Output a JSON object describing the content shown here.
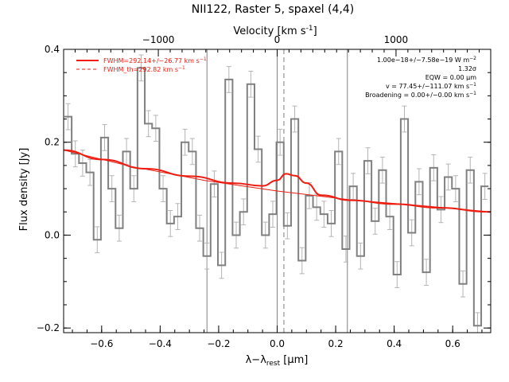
{
  "chart_data": {
    "type": "line",
    "title": "NII122, Raster 5, spaxel (4,4)",
    "xlabel": "λ−λ",
    "xlabel_sub": "rest",
    "xlabel_unit": " [μm]",
    "ylabel": "Flux density [Jy]",
    "top_axis_label": "Velocity [km s",
    "top_axis_label_sup": "-1",
    "top_axis_label_end": "]",
    "xlim": [
      -0.73,
      0.73
    ],
    "ylim": [
      -0.21,
      0.4
    ],
    "x_ticks": [
      -0.6,
      -0.4,
      -0.2,
      0.0,
      0.2,
      0.4,
      0.6
    ],
    "x_tick_labels": [
      "−0.6",
      "−0.4",
      "−0.2",
      "0.0",
      "0.2",
      "0.4",
      "0.6"
    ],
    "y_ticks": [
      -0.2,
      0.0,
      0.2,
      0.4
    ],
    "y_tick_labels": [
      "−0.2",
      "0.0",
      "0.2",
      "0.4"
    ],
    "top_ticks_kms": [
      -1000,
      0,
      1000
    ],
    "top_tick_labels": [
      "−1000",
      "0",
      "1000"
    ],
    "vertical_lines_x": [
      -0.24,
      0.0,
      0.24
    ],
    "dashed_line_x": 0.023,
    "data_x": [
      -0.715,
      -0.69,
      -0.665,
      -0.64,
      -0.615,
      -0.59,
      -0.565,
      -0.54,
      -0.515,
      -0.49,
      -0.465,
      -0.44,
      -0.415,
      -0.39,
      -0.365,
      -0.34,
      -0.315,
      -0.29,
      -0.265,
      -0.24,
      -0.215,
      -0.19,
      -0.165,
      -0.14,
      -0.115,
      -0.09,
      -0.065,
      -0.04,
      -0.015,
      0.01,
      0.035,
      0.06,
      0.085,
      0.11,
      0.135,
      0.16,
      0.185,
      0.21,
      0.235,
      0.26,
      0.285,
      0.31,
      0.335,
      0.36,
      0.385,
      0.41,
      0.435,
      0.46,
      0.485,
      0.51,
      0.535,
      0.56,
      0.585,
      0.61,
      0.635,
      0.66,
      0.685,
      0.71
    ],
    "data_y": [
      0.255,
      0.175,
      0.155,
      0.135,
      -0.01,
      0.21,
      0.1,
      0.015,
      0.18,
      0.1,
      0.36,
      0.24,
      0.23,
      0.1,
      0.025,
      0.04,
      0.2,
      0.18,
      0.015,
      -0.045,
      0.11,
      -0.065,
      0.335,
      0.0,
      0.05,
      0.325,
      0.185,
      0.0,
      0.045,
      0.2,
      0.02,
      0.25,
      -0.055,
      0.085,
      0.06,
      0.045,
      0.025,
      0.18,
      -0.03,
      0.105,
      -0.045,
      0.16,
      0.03,
      0.14,
      0.04,
      -0.085,
      0.25,
      0.005,
      0.115,
      -0.08,
      0.145,
      0.055,
      0.125,
      0.1,
      -0.105,
      0.14,
      -0.195,
      0.105
    ],
    "error_bar_halfwidth": 0.028,
    "fit_curve_x": [
      -0.73,
      -0.6,
      -0.45,
      -0.3,
      -0.15,
      -0.05,
      0.0,
      0.03,
      0.06,
      0.1,
      0.15,
      0.25,
      0.4,
      0.55,
      0.73
    ],
    "fit_curve_y": [
      0.183,
      0.163,
      0.143,
      0.127,
      0.112,
      0.106,
      0.118,
      0.132,
      0.128,
      0.112,
      0.086,
      0.075,
      0.067,
      0.059,
      0.05
    ],
    "continuum_x": [
      -0.73,
      -0.5,
      -0.25,
      0.0,
      0.25,
      0.5,
      0.73
    ],
    "continuum_y": [
      0.183,
      0.148,
      0.118,
      0.095,
      0.076,
      0.063,
      0.05
    ],
    "legend": [
      {
        "label": "FWHM=292.14+/−26.77 km s",
        "sup": "−1",
        "style": "solid"
      },
      {
        "label": "FWHM_th=292.82 km s",
        "sup": "−1",
        "style": "dashed"
      }
    ],
    "annotations": [
      {
        "text": "1.00e−18+/−7.58e−19 W m",
        "sup": "−2"
      },
      {
        "text": "1.32σ",
        "sup": ""
      },
      {
        "text": "EQW = 0.00 μm",
        "sup": ""
      },
      {
        "text": "v = 77.45+/−111.07 km s",
        "sup": "−1"
      },
      {
        "text": "Broadening = 0.00+/−0.00 km s",
        "sup": "−1"
      }
    ],
    "colors": {
      "data": "#808080",
      "error": "#b4b4b4",
      "fit": "#ee1c10",
      "continuum": "#ee1c10",
      "vline": "#808080",
      "axis": "#000000"
    },
    "grid": false,
    "legend_position": "top-left"
  }
}
